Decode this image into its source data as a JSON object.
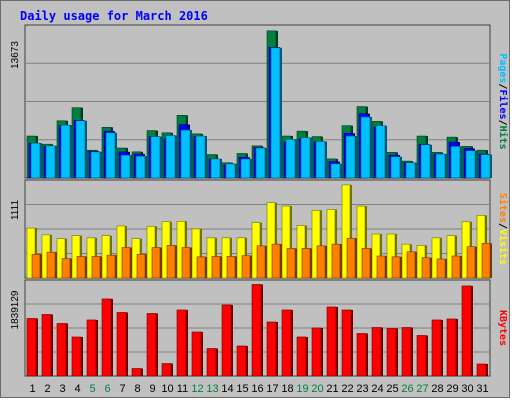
{
  "page": {
    "title": "Daily usage for March 2016"
  },
  "chart_data": {
    "type": "bar",
    "title": "Daily usage for March 2016",
    "days": [
      "1",
      "2",
      "3",
      "4",
      "5",
      "6",
      "7",
      "8",
      "9",
      "10",
      "11",
      "12",
      "13",
      "14",
      "15",
      "16",
      "17",
      "18",
      "19",
      "20",
      "21",
      "22",
      "23",
      "24",
      "25",
      "26",
      "27",
      "28",
      "29",
      "30",
      "31"
    ],
    "weekend_days": [
      "5",
      "6",
      "12",
      "13",
      "19",
      "20",
      "26",
      "27"
    ],
    "colors": {
      "hits": "#008040",
      "files": "#0000ff",
      "pages": "#00c0ff",
      "visits": "#ffff00",
      "sites": "#ff8000",
      "kbytes": "#ff0000",
      "weekday_label": "#000000",
      "weekend_label": "#008040",
      "title": "#0000ff",
      "grid": "#808080"
    },
    "panels": [
      {
        "name": "hits-files-pages",
        "max_label": "13673",
        "ylim": [
          0,
          13673
        ],
        "legend": [
          {
            "text": "Pages",
            "color": "#00c0ff"
          },
          {
            "text": "/",
            "color": "#000000"
          },
          {
            "text": "Files",
            "color": "#0000ff"
          },
          {
            "text": "/",
            "color": "#000000"
          },
          {
            "text": "Hits",
            "color": "#008040"
          }
        ],
        "series": [
          {
            "name": "Hits",
            "values": [
              3850,
              3100,
              5250,
              6450,
              2550,
              4650,
              2750,
              2400,
              4350,
              4150,
              5750,
              4050,
              2150,
              1400,
              2250,
              2950,
              13500,
              3850,
              4300,
              3800,
              1750,
              4800,
              6550,
              5200,
              2350,
              1550,
              3850,
              2350,
              3750,
              2900,
              2550
            ]
          },
          {
            "name": "Files",
            "values": [
              3200,
              2900,
              4800,
              5300,
              2450,
              4300,
              2400,
              2200,
              3800,
              3600,
              4900,
              3800,
              1750,
              1200,
              1900,
              2800,
              12000,
              3300,
              3600,
              3300,
              1500,
              4100,
              5900,
              4700,
              2100,
              1400,
              3100,
              2200,
              3300,
              2700,
              2200
            ]
          },
          {
            "name": "Pages",
            "values": [
              3200,
              2950,
              4850,
              5250,
              2400,
              4150,
              2100,
              2000,
              3800,
              3900,
              4400,
              3850,
              1750,
              1300,
              1750,
              2750,
              11950,
              3550,
              3700,
              3350,
              1300,
              3850,
              5600,
              4800,
              1950,
              1400,
              3050,
              2200,
              2900,
              2500,
              2150
            ]
          }
        ]
      },
      {
        "name": "visits-sites",
        "max_label": "1111",
        "ylim": [
          0,
          1111
        ],
        "legend": [
          {
            "text": "Sites",
            "color": "#ff8000"
          },
          {
            "text": "/",
            "color": "#000000"
          },
          {
            "text": "Visits",
            "color": "#ffff00"
          }
        ],
        "series": [
          {
            "name": "Visits",
            "values": [
              590,
              510,
              465,
              500,
              475,
              500,
              615,
              465,
              610,
              665,
              670,
              580,
              475,
              475,
              475,
              655,
              890,
              850,
              620,
              800,
              810,
              1100,
              850,
              520,
              520,
              400,
              385,
              475,
              500,
              665,
              740
            ]
          },
          {
            "name": "Sites",
            "values": [
              280,
              305,
              230,
              255,
              255,
              270,
              360,
              280,
              360,
              385,
              360,
              250,
              255,
              255,
              265,
              380,
              400,
              350,
              350,
              380,
              400,
              470,
              350,
              260,
              250,
              310,
              240,
              225,
              260,
              370,
              410
            ]
          }
        ]
      },
      {
        "name": "kbytes",
        "max_label": "1839129",
        "ylim": [
          0,
          1839129
        ],
        "legend": [
          {
            "text": "KBytes",
            "color": "#ff0000"
          }
        ],
        "series": [
          {
            "name": "KBytes",
            "values": [
              1150000,
              1230000,
              1050000,
              780000,
              1120000,
              1540000,
              1270000,
              150000,
              1250000,
              250000,
              1320000,
              880000,
              550000,
              1420000,
              600000,
              1830000,
              1080000,
              1320000,
              780000,
              960000,
              1380000,
              1320000,
              850000,
              970000,
              950000,
              970000,
              810000,
              1120000,
              1140000,
              1800000,
              240000
            ]
          }
        ]
      }
    ]
  }
}
